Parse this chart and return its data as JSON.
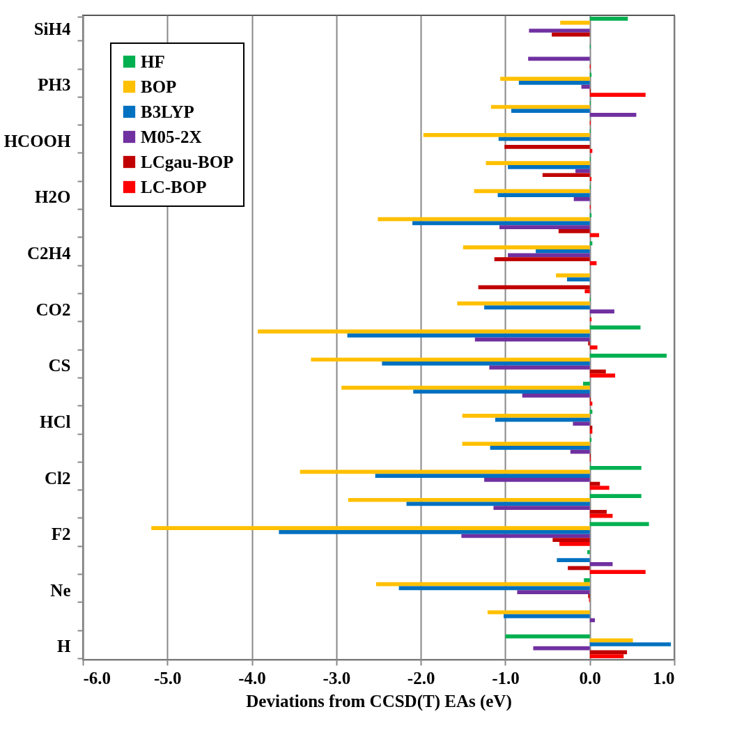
{
  "chart_data": {
    "type": "bar",
    "orientation": "horizontal",
    "xlabel": "Deviations from CCSD(T) EAs (eV)",
    "categories": [
      "SiH4",
      null,
      "PH3",
      null,
      "HCOOH",
      null,
      "H2O",
      null,
      "C2H4",
      null,
      "CO2",
      null,
      "CS",
      null,
      "HCl",
      null,
      "Cl2",
      null,
      "F2",
      null,
      "Ne",
      null,
      "H"
    ],
    "series": [
      {
        "name": "HF",
        "color": "#00b050",
        "values": [
          0.45,
          0.01,
          0.02,
          0.01,
          0.01,
          0.01,
          0.01,
          0.02,
          0.03,
          0,
          0.01,
          0.6,
          0.91,
          -0.08,
          0.03,
          0.02,
          0.61,
          0.61,
          0.7,
          -0.03,
          -0.07,
          0,
          -1.0
        ]
      },
      {
        "name": "BOP",
        "color": "#ffc000",
        "values": [
          -0.35,
          0,
          -1.06,
          -1.17,
          -1.97,
          -1.23,
          -1.37,
          -2.51,
          -1.5,
          -0.4,
          -1.57,
          -3.93,
          -3.3,
          -2.94,
          -1.51,
          -1.51,
          -3.43,
          -2.86,
          -5.19,
          0,
          -2.53,
          -1.21,
          0.51
        ]
      },
      {
        "name": "B3LYP",
        "color": "#0070c0",
        "values": [
          0,
          0,
          -0.84,
          -0.93,
          -1.08,
          -0.97,
          -1.09,
          -2.1,
          -0.64,
          -0.27,
          -1.25,
          -2.87,
          -2.46,
          -2.09,
          -1.12,
          -1.18,
          -2.54,
          -2.17,
          -3.68,
          -0.39,
          -2.26,
          -1.02,
          0.96
        ]
      },
      {
        "name": "M05-2X",
        "color": "#7030a0",
        "values": [
          -0.72,
          -0.73,
          -0.1,
          0.55,
          0,
          -0.17,
          -0.19,
          -1.07,
          -0.97,
          0,
          0.29,
          -1.36,
          -1.19,
          -0.8,
          -0.2,
          -0.23,
          -1.25,
          -1.14,
          -1.52,
          0.27,
          -0.86,
          0.06,
          -0.67
        ]
      },
      {
        "name": "LCgau-BOP",
        "color": "#c00000",
        "values": [
          -0.45,
          0,
          0.01,
          0,
          -1.01,
          -0.56,
          0,
          -0.37,
          -1.13,
          -1.32,
          0,
          -0.02,
          0.19,
          0.01,
          0.03,
          0.01,
          0.12,
          0.2,
          -0.44,
          -0.26,
          -0.02,
          0,
          0.44
        ]
      },
      {
        "name": "LC-BOP",
        "color": "#ff0000",
        "values": [
          0,
          0.01,
          0.66,
          0.01,
          0.03,
          0.02,
          0.01,
          0.11,
          0.08,
          -0.06,
          0.02,
          0.09,
          0.3,
          0.03,
          0.03,
          0.01,
          0.23,
          0.27,
          -0.36,
          0.66,
          -0.01,
          0,
          0.4
        ]
      }
    ],
    "xlim": [
      -6,
      1
    ],
    "xticks": [
      {
        "value": -6,
        "label": "-6.0"
      },
      {
        "value": -5,
        "label": "-5.0"
      },
      {
        "value": -4,
        "label": "-4.0"
      },
      {
        "value": -3,
        "label": "-3.0"
      },
      {
        "value": -2,
        "label": "-2.0"
      },
      {
        "value": -1,
        "label": "-1.0"
      },
      {
        "value": 0,
        "label": "0.0"
      },
      {
        "value": 1,
        "label": "1.0"
      }
    ],
    "grid": "x",
    "legend": "top left"
  }
}
